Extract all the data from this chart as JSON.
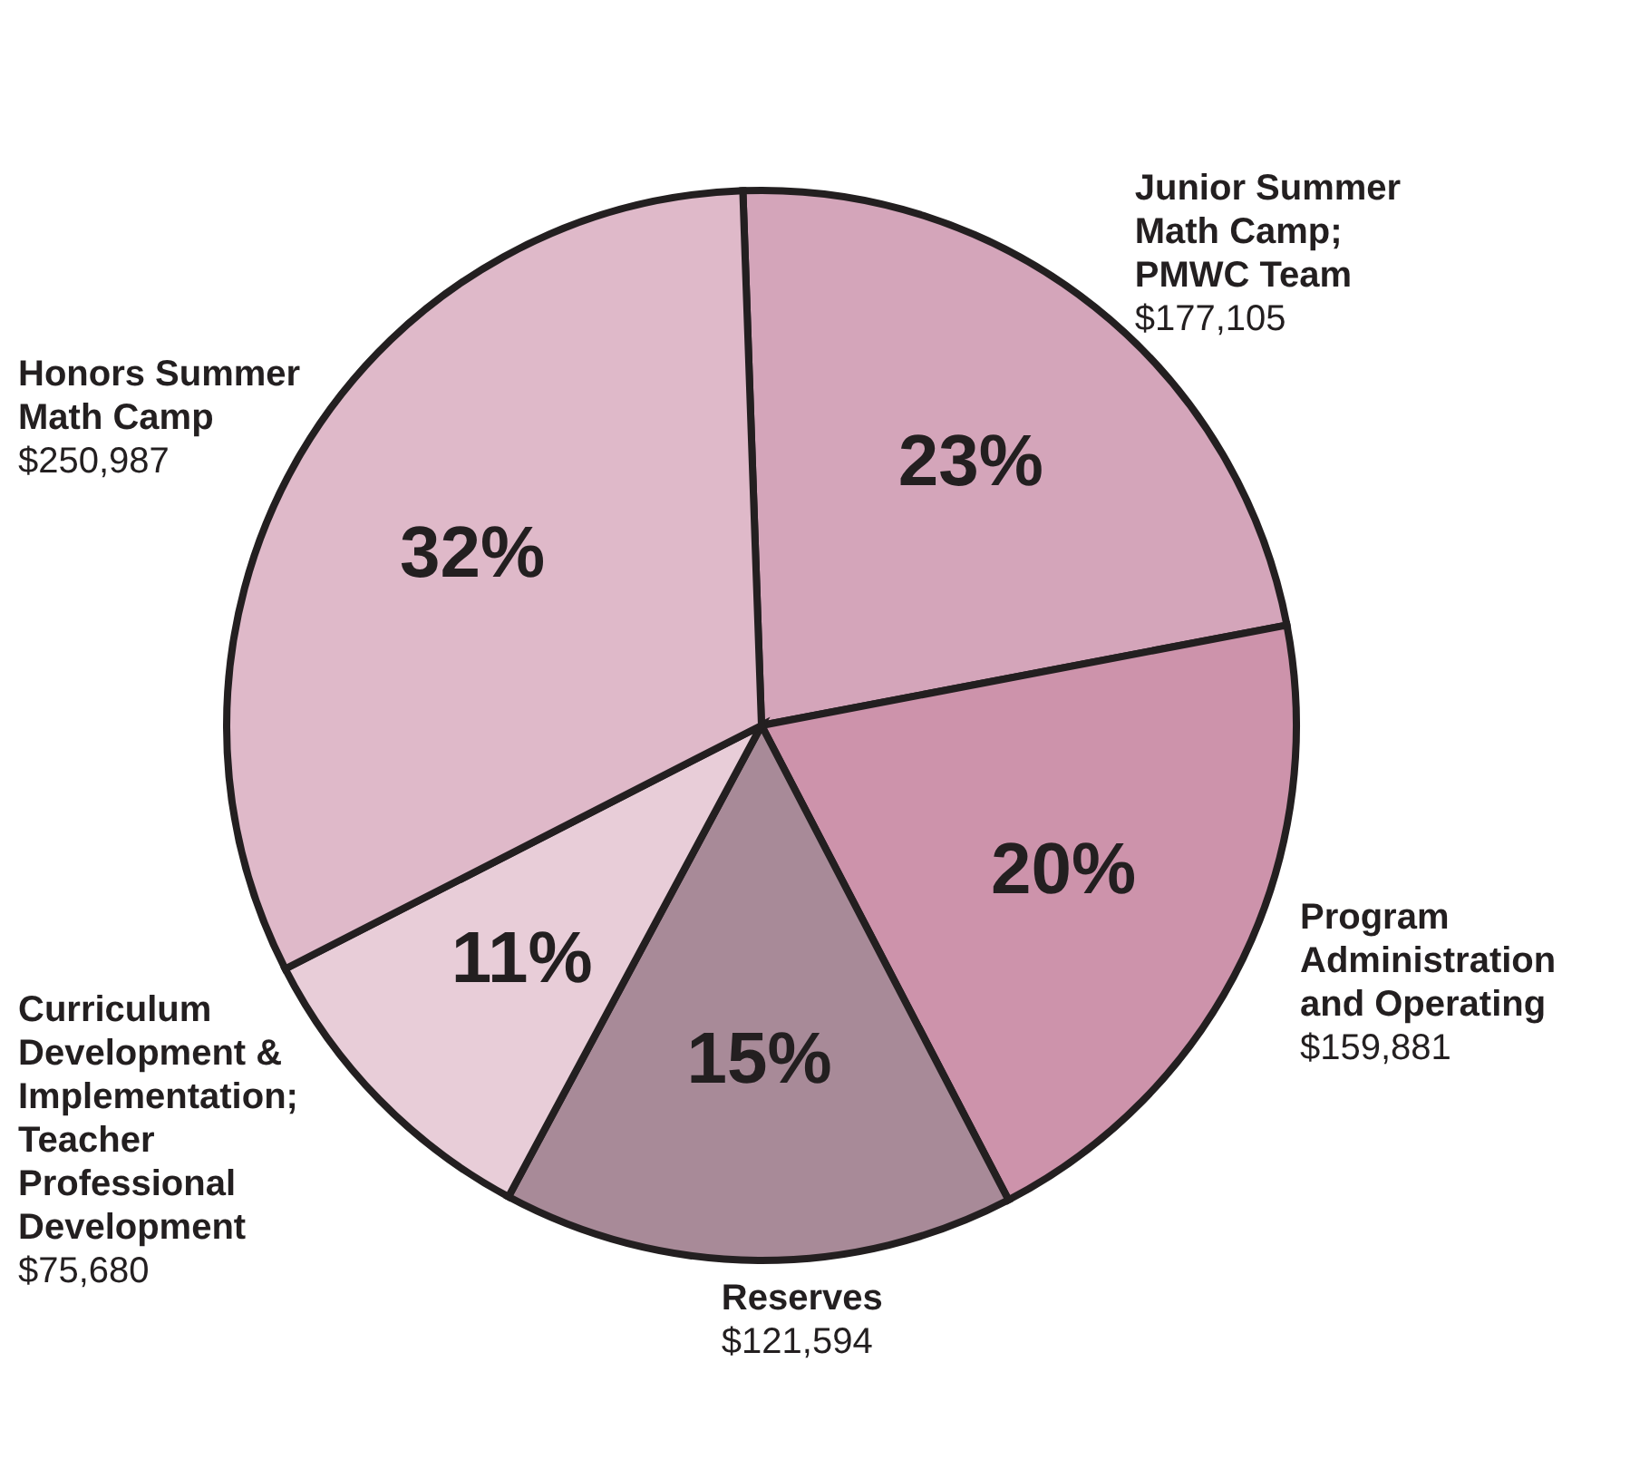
{
  "chart_data": {
    "type": "pie",
    "categories": [
      "Junior Summer Math Camp; PMWC Team",
      "Program Administration and Operating",
      "Reserves",
      "Curriculum Development & Implementation; Teacher Professional Development",
      "Honors Summer Math Camp"
    ],
    "values": [
      177105,
      159881,
      121594,
      75680,
      250987
    ],
    "colors": [
      "#d4a5ba",
      "#cd93ab",
      "#a88a98",
      "#e8cdd8",
      "#dfb9c9"
    ],
    "value_labels": [
      "$177,105",
      "$159,881",
      "$121,594",
      "$75,680",
      "$250,987"
    ],
    "annotations": [
      {
        "text": "23%",
        "x": "Junior Summer Math Camp; PMWC Team"
      },
      {
        "text": "20%",
        "x": "Program Administration and Operating"
      },
      {
        "text": "15%",
        "x": "Reserves"
      },
      {
        "text": "11%",
        "x": "Curriculum Development & Implementation; Teacher Professional Development"
      },
      {
        "text": "32%",
        "x": "Honors Summer Math Camp"
      }
    ]
  }
}
